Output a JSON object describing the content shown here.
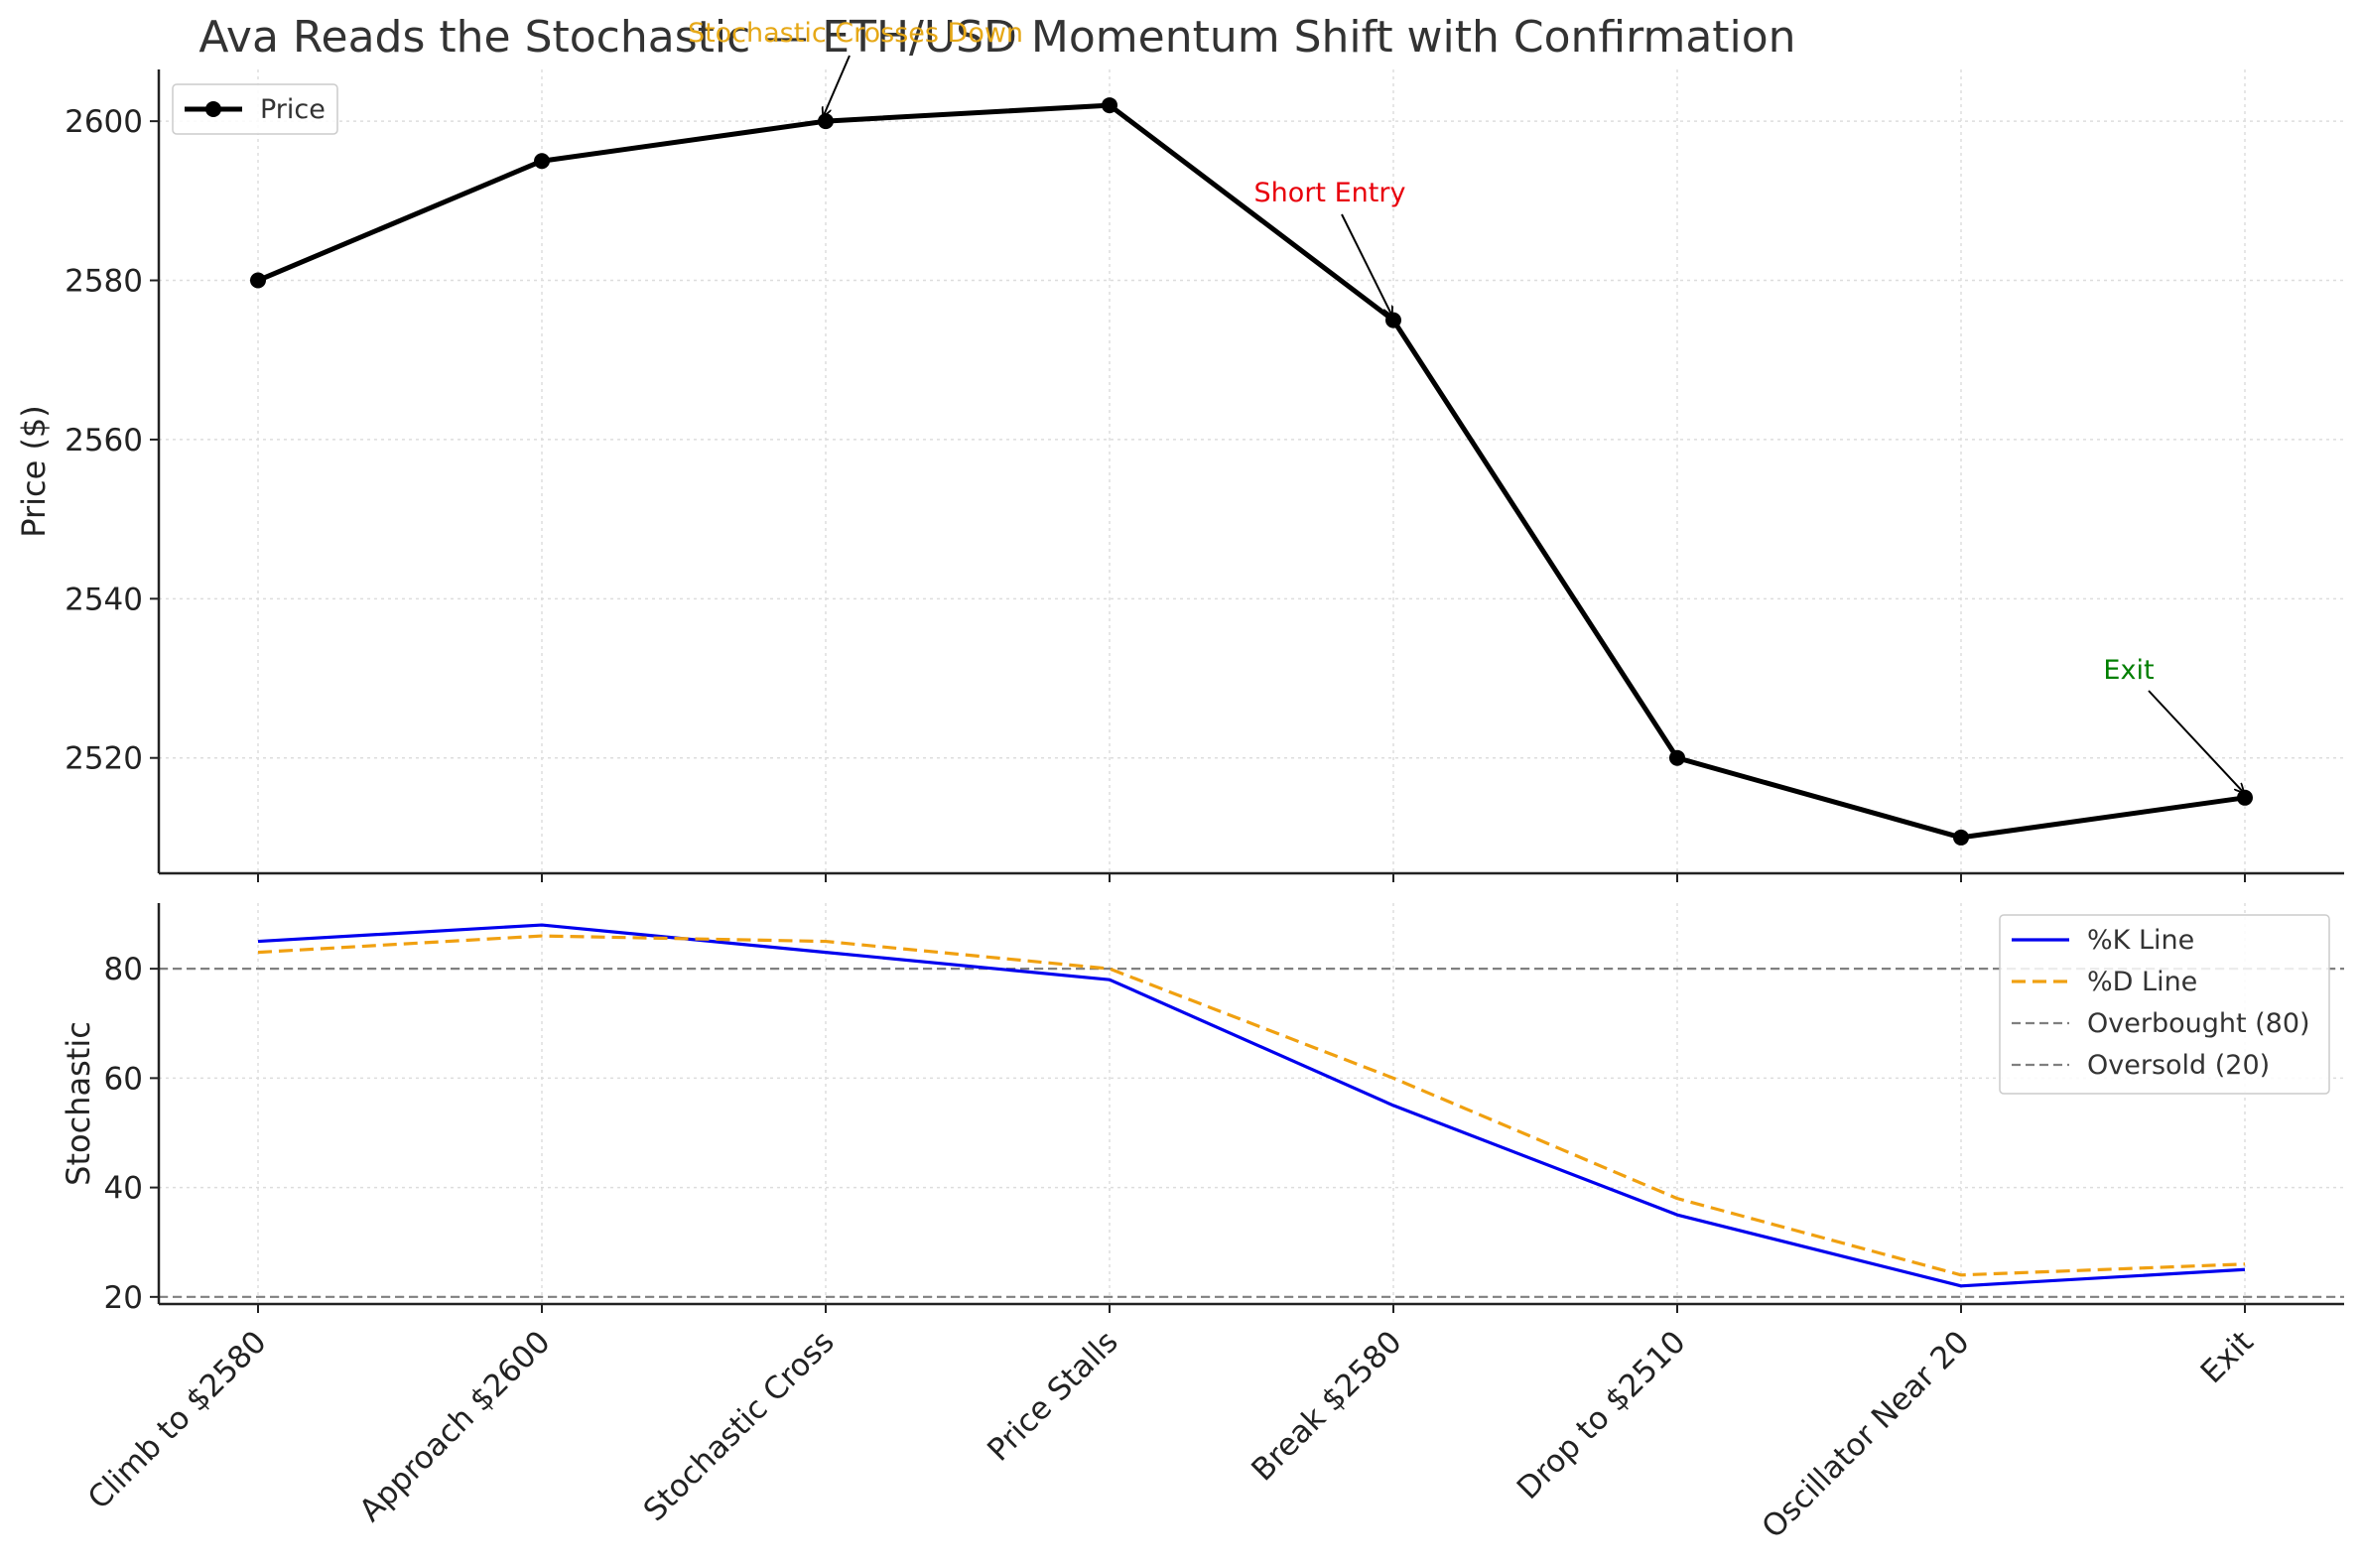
{
  "chart_data": {
    "title": "Ava Reads the Stochastic — ETH/USD Momentum Shift with Confirmation",
    "categories": [
      "Climb to $2580",
      "Approach $2600",
      "Stochastic Cross",
      "Price Stalls",
      "Break $2580",
      "Drop to $2510",
      "Oscillator Near 20",
      "Exit"
    ],
    "panels": [
      {
        "type": "line",
        "ylabel": "Price ($)",
        "ylim": [
          2505.5,
          2606.5
        ],
        "yticks": [
          2520,
          2540,
          2560,
          2580,
          2600
        ],
        "grid": true,
        "legend_position": "upper-left",
        "series": [
          {
            "name": "Price",
            "values": [
              2580,
              2595,
              2600,
              2602,
              2575,
              2520,
              2510,
              2515
            ],
            "color": "#000000",
            "style": "solid",
            "marker": "circle"
          }
        ],
        "annotations": [
          {
            "text": "Stochastic Crosses Down",
            "category_index": 2,
            "value": 2600,
            "color": "#e6a817"
          },
          {
            "text": "Short Entry",
            "category_index": 4,
            "value": 2575,
            "color": "#e8000b"
          },
          {
            "text": "Exit",
            "category_index": 7,
            "value": 2515,
            "color": "#007f00"
          }
        ]
      },
      {
        "type": "line",
        "ylabel": "Stochastic",
        "ylim": [
          18.7,
          92
        ],
        "yticks": [
          20,
          40,
          60,
          80
        ],
        "grid": true,
        "legend_position": "upper-right",
        "series": [
          {
            "name": "%K Line",
            "values": [
              85,
              88,
              83,
              78,
              55,
              35,
              22,
              25
            ],
            "color": "#0000ee",
            "style": "solid"
          },
          {
            "name": "%D Line",
            "values": [
              83,
              86,
              85,
              80,
              60,
              38,
              24,
              26
            ],
            "color": "#f0a010",
            "style": "dashed"
          }
        ],
        "reference_lines": [
          {
            "name": "Overbought (80)",
            "value": 80,
            "color": "#808080",
            "style": "dashed"
          },
          {
            "name": "Oversold (20)",
            "value": 20,
            "color": "#808080",
            "style": "dashed"
          }
        ]
      }
    ]
  }
}
